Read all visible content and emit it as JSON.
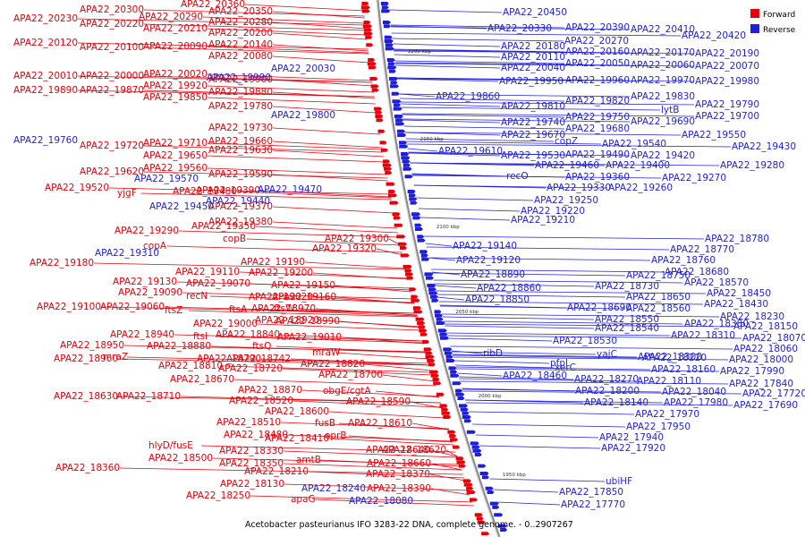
{
  "legend": {
    "forward_label": "Forward",
    "reverse_label": "Reverse",
    "forward_color": "#e8000b",
    "reverse_color": "#1f1fdb"
  },
  "caption": "Acetobacter pasteurianus IFO 3283-22 DNA, complete genome. - 0..2907267",
  "scale_ticks": [
    "2200 kbp",
    "2150 kbp",
    "2100 kbp",
    "2050 kbp",
    "2000 kbp",
    "1950 kbp"
  ],
  "forward_labels": [
    "APA22_20300",
    "APA22_20360",
    "APA22_20230",
    "APA22_20290",
    "APA22_20350",
    "APA22_20220",
    "APA22_20280",
    "APA22_20210",
    "APA22_20200",
    "APA22_20120",
    "APA22_20100",
    "APA22_20090",
    "APA22_20140",
    "APA22_20080",
    "APA22_20010",
    "APA22_20000",
    "APA22_20020",
    "APA22_19900",
    "APA22_19890",
    "APA22_19920",
    "APA22_19880",
    "APA22_19870",
    "APA22_19850",
    "APA22_19780",
    "APA22_19730",
    "APA22_19720",
    "APA22_19710",
    "APA22_19660",
    "APA22_19650",
    "APA22_19630",
    "APA22_19620",
    "APA22_19560",
    "APA22_19590",
    "APA22_19520",
    "yjgF",
    "APA22_19480",
    "APA22_19390",
    "APA22_19370",
    "APA22_19350",
    "APA22_19380",
    "APA22_19290",
    "copB",
    "APA22_19300",
    "copA",
    "APA22_19320",
    "APA22_19180",
    "APA22_19190",
    "APA22_19110",
    "APA22_19200",
    "APA22_19130",
    "APA22_19070",
    "APA22_19150",
    "APA22_19090",
    "recN",
    "APA22_19020",
    "APA22_19160",
    "APA22_19100",
    "APA22_19060",
    "ftsZ",
    "ftsA",
    "APA22_18970",
    "ftsW",
    "APA22_18920",
    "APA22_18990",
    "APA22_19000",
    "APA22_18940",
    "ftsI",
    "APA22_18840",
    "APA22_19010",
    "APA22_18950",
    "APA22_18880",
    "ftsQ",
    "APA22_18960",
    "mraZ",
    "APA22_18790",
    "APA22_18742",
    "mraW",
    "APA22_18810",
    "APA22_18720",
    "APA22_18820",
    "APA22_18670",
    "APA22_18700",
    "APA22_18630",
    "APA22_18870",
    "obgE/cgtA",
    "APA22_18710",
    "APA22_18520",
    "APA22_18590",
    "APA22_18600",
    "APA22_18510",
    "fusB",
    "APA22_18610",
    "APA22_18480",
    "APA22_18410",
    "oprB",
    "APA22_18620",
    "hlyD/fusE",
    "APA22_18330",
    "APA22_18640",
    "APA22_18500",
    "APA22_18350",
    "amtB",
    "APA22_18660",
    "APA22_18360",
    "APA22_18210",
    "APA22_18370",
    "APA22_18130",
    "APA22_18390",
    "APA22_18250",
    "apaG"
  ],
  "reverse_labels": [
    "APA22_20450",
    "APA22_20330",
    "APA22_20390",
    "APA22_20410",
    "APA22_20420",
    "APA22_20270",
    "APA22_20180",
    "APA22_20160",
    "APA22_20170",
    "APA22_20190",
    "APA22_20110",
    "APA22_20050",
    "APA22_20060",
    "APA22_20070",
    "APA22_20030",
    "APA22_20040",
    "APA22_19990",
    "APA22_19950",
    "APA22_19960",
    "APA22_19970",
    "APA22_19980",
    "APA22_19860",
    "APA22_19830",
    "APA22_19820",
    "APA22_19810",
    "lytB",
    "APA22_19790",
    "APA22_19800",
    "APA22_19750",
    "APA22_19700",
    "APA22_19740",
    "APA22_19690",
    "APA22_19680",
    "APA22_19670",
    "APA22_19550",
    "APA22_19760",
    "copZ",
    "APA22_19540",
    "APA22_19430",
    "APA22_19610",
    "APA22_19530",
    "APA22_19490",
    "APA22_19420",
    "APA22_19460",
    "APA22_19400",
    "APA22_19280",
    "recO",
    "APA22_19360",
    "APA22_19270",
    "APA22_19570",
    "APA22_19330",
    "APA22_19260",
    "APA22_19470",
    "APA22_19250",
    "APA22_19440",
    "APA22_19450",
    "APA22_19220",
    "APA22_19210",
    "APA22_18780",
    "APA22_19140",
    "APA22_18770",
    "APA22_19310",
    "APA22_18760",
    "APA22_19120",
    "APA22_18680",
    "APA22_18750",
    "APA22_18890",
    "APA22_18570",
    "APA22_18730",
    "APA22_18860",
    "APA22_18650",
    "APA22_18450",
    "APA22_18850",
    "APA22_18430",
    "APA22_18690",
    "APA22_18560",
    "APA22_18230",
    "APA22_18550",
    "APA22_18380",
    "APA22_18150",
    "APA22_18540",
    "APA22_18310",
    "APA22_18070",
    "APA22_18530",
    "ribD",
    "yajC",
    "APA22_18060",
    "APA22_18300",
    "pfpI",
    "APA22_18000",
    "APA22_18220",
    "APA22_18460",
    "xerC",
    "APA22_18160",
    "APA22_17990",
    "APA22_18270",
    "APA22_18110",
    "APA22_18200",
    "APA22_18040",
    "APA22_17840",
    "APA22_17720",
    "APA22_18140",
    "APA22_17980",
    "APA22_17690",
    "APA22_17970",
    "APA22_17950",
    "APA22_17940",
    "APA22_17920",
    "ubiHF",
    "APA22_17850",
    "APA22_18240",
    "APA22_18080",
    "APA22_17770"
  ]
}
